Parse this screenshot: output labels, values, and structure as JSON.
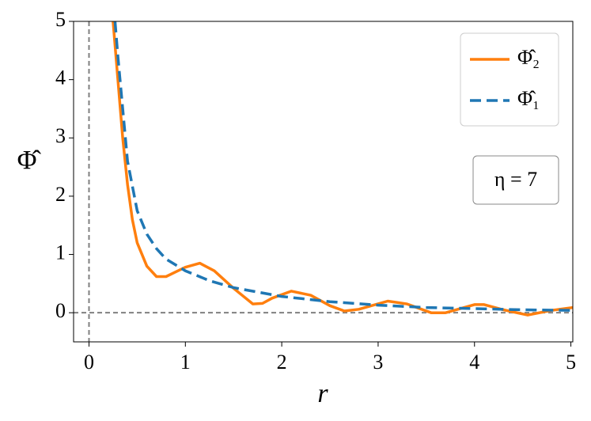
{
  "chart_data": {
    "type": "line",
    "x_label": "r",
    "y_label": "Φ̂",
    "annotation": "η = 7",
    "xlim": [
      -0.16,
      5.02
    ],
    "ylim": [
      -0.5,
      5
    ],
    "xticks": [
      0,
      1,
      2,
      3,
      4,
      5
    ],
    "yticks": [
      0,
      1,
      2,
      3,
      4,
      5
    ],
    "hlines": [
      0
    ],
    "vlines": [
      0
    ],
    "legend": "upper right",
    "series": [
      {
        "name": "Φ̂₂",
        "color": "#ff7f0e",
        "style": "solid",
        "x": [
          0.25,
          0.3,
          0.35,
          0.4,
          0.45,
          0.5,
          0.6,
          0.7,
          0.8,
          0.9,
          1.0,
          1.15,
          1.3,
          1.5,
          1.7,
          1.8,
          1.9,
          2.1,
          2.3,
          2.5,
          2.65,
          2.8,
          3.1,
          3.3,
          3.55,
          3.7,
          4.0,
          4.1,
          4.3,
          4.55,
          4.8,
          5.02
        ],
        "values": [
          5,
          4.0,
          3.0,
          2.2,
          1.6,
          1.2,
          0.8,
          0.62,
          0.62,
          0.7,
          0.78,
          0.85,
          0.72,
          0.42,
          0.15,
          0.16,
          0.25,
          0.37,
          0.3,
          0.12,
          0.03,
          0.06,
          0.2,
          0.15,
          0.0,
          0.0,
          0.14,
          0.14,
          0.05,
          -0.04,
          0.04,
          0.09
        ]
      },
      {
        "name": "Φ̂₁",
        "color": "#1f77b4",
        "style": "dashed",
        "x": [
          0.27,
          0.3,
          0.35,
          0.4,
          0.5,
          0.6,
          0.7,
          0.8,
          1.0,
          1.25,
          1.5,
          2.0,
          2.5,
          3.0,
          3.5,
          4.0,
          4.5,
          5.0
        ],
        "values": [
          5,
          4.4,
          3.5,
          2.6,
          1.75,
          1.35,
          1.1,
          0.92,
          0.72,
          0.55,
          0.43,
          0.28,
          0.19,
          0.13,
          0.09,
          0.07,
          0.05,
          0.04
        ]
      }
    ]
  }
}
